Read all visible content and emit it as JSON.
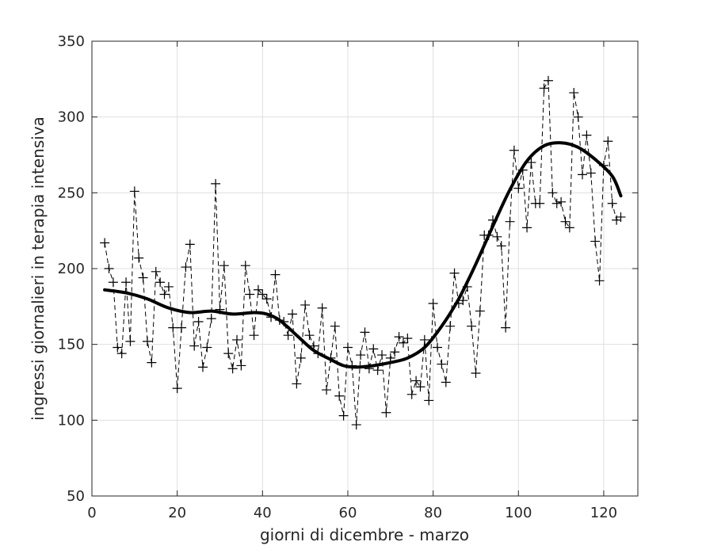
{
  "chart_data": {
    "type": "line",
    "title": "",
    "xlabel": "giorni di dicembre - marzo",
    "ylabel": "ingressi giornalieri in terapia intensiva",
    "xlim": [
      0,
      128
    ],
    "ylim": [
      50,
      350
    ],
    "xticks": [
      0,
      20,
      40,
      60,
      80,
      100,
      120
    ],
    "yticks": [
      50,
      100,
      150,
      200,
      250,
      300,
      350
    ],
    "grid": true,
    "legend": "none",
    "series": [
      {
        "style": "dashed-with-plus-markers",
        "color": "#000000",
        "x": [
          3,
          4,
          5,
          6,
          7,
          8,
          9,
          10,
          11,
          12,
          13,
          14,
          15,
          16,
          17,
          18,
          19,
          20,
          21,
          22,
          23,
          24,
          25,
          26,
          27,
          28,
          29,
          30,
          31,
          32,
          33,
          34,
          35,
          36,
          37,
          38,
          39,
          40,
          41,
          42,
          43,
          44,
          45,
          46,
          47,
          48,
          49,
          50,
          51,
          52,
          53,
          54,
          55,
          56,
          57,
          58,
          59,
          60,
          61,
          62,
          63,
          64,
          65,
          66,
          67,
          68,
          69,
          70,
          71,
          72,
          73,
          74,
          75,
          76,
          77,
          78,
          79,
          80,
          81,
          82,
          83,
          84,
          85,
          86,
          87,
          88,
          89,
          90,
          91,
          92,
          93,
          94,
          95,
          96,
          97,
          98,
          99,
          100,
          101,
          102,
          103,
          104,
          105,
          106,
          107,
          108,
          109,
          110,
          111,
          112,
          113,
          114,
          115,
          116,
          117,
          118,
          119,
          120,
          121,
          122,
          123,
          124
        ],
        "y": [
          217,
          200,
          191,
          148,
          144,
          191,
          152,
          251,
          207,
          194,
          152,
          138,
          198,
          191,
          183,
          188,
          161,
          121,
          161,
          201,
          216,
          149,
          165,
          135,
          148,
          167,
          256,
          173,
          202,
          144,
          134,
          153,
          136,
          202,
          183,
          156,
          186,
          183,
          180,
          168,
          196,
          166,
          165,
          156,
          170,
          124,
          141,
          176,
          156,
          149,
          144,
          174,
          120,
          141,
          162,
          116,
          103,
          148,
          136,
          97,
          143,
          158,
          134,
          147,
          133,
          143,
          105,
          141,
          145,
          155,
          151,
          154,
          117,
          126,
          122,
          153,
          113,
          177,
          148,
          137,
          125,
          162,
          197,
          177,
          179,
          188,
          162,
          131,
          172,
          222,
          222,
          232,
          221,
          215,
          161,
          231,
          278,
          253,
          265,
          227,
          270,
          243,
          243,
          319,
          324,
          250,
          243,
          244,
          231,
          227,
          316,
          300,
          262,
          288,
          263,
          218,
          192,
          268,
          284,
          243,
          232,
          234
        ]
      },
      {
        "style": "solid-thick-smooth",
        "color": "#000000",
        "x": [
          3,
          8,
          13,
          18,
          23,
          28,
          33,
          38,
          41,
          44,
          48,
          52,
          56,
          59,
          62,
          66,
          70,
          74,
          78,
          82,
          86,
          90,
          94,
          98,
          102,
          106,
          110,
          114,
          118,
          122,
          124
        ],
        "y": [
          186,
          184,
          180,
          174,
          171,
          172,
          170,
          171,
          170,
          166,
          156,
          146,
          140,
          136,
          135,
          136,
          138,
          141,
          148,
          162,
          180,
          203,
          228,
          252,
          271,
          281,
          283,
          280,
          272,
          261,
          248
        ]
      }
    ]
  }
}
